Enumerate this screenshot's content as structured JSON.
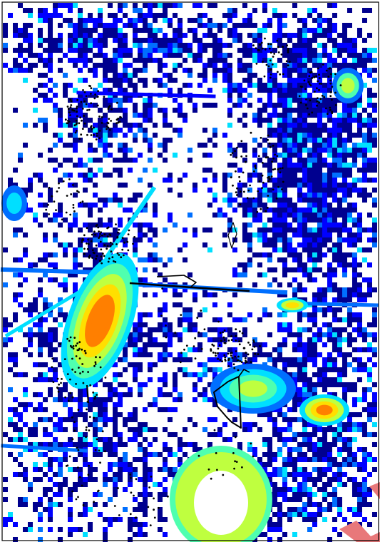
{
  "map": {
    "type": "density-heatmap-with-tracks",
    "background": "#ffffff",
    "colormap": [
      "#00008f",
      "#0000ff",
      "#006fff",
      "#00dfff",
      "#4fffaf",
      "#bfff3f",
      "#ffdf00",
      "#ff7f00",
      "#ff1f00"
    ],
    "track_color": "#000000",
    "points_color": "#000000",
    "overlay_arrow_color": "#e8787a",
    "border_color": "#000000"
  }
}
